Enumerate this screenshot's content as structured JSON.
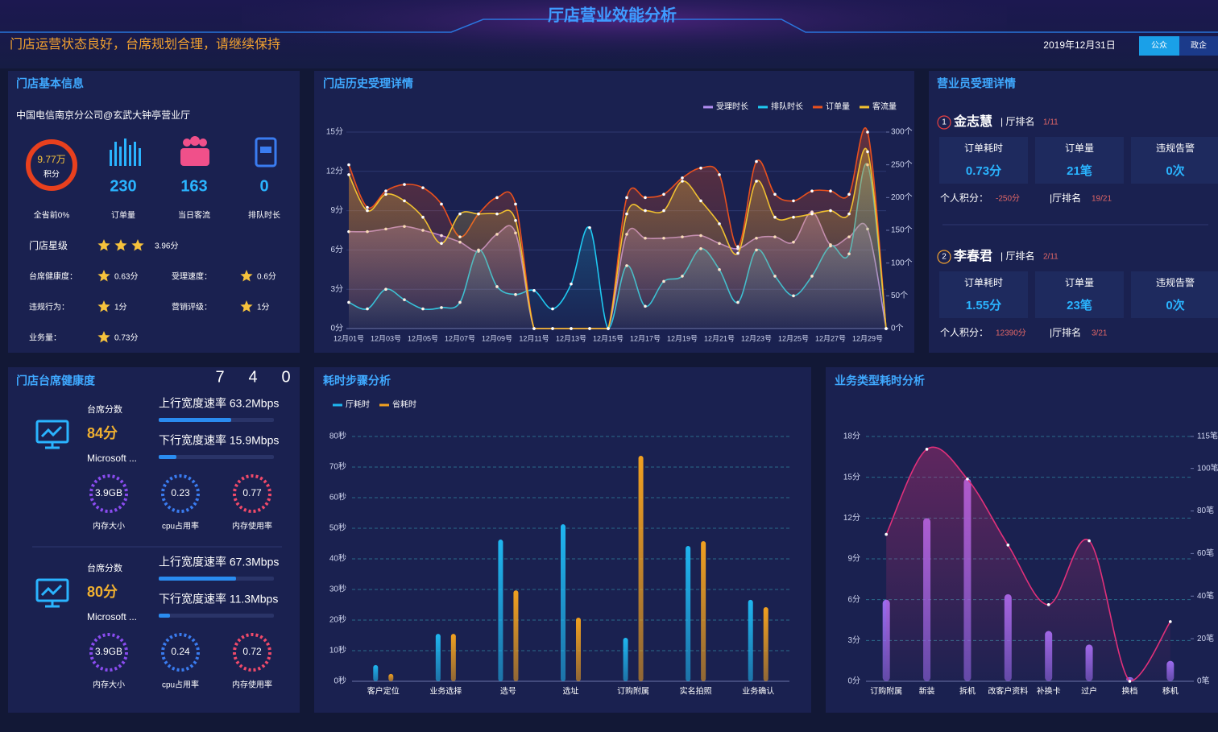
{
  "header": {
    "title": "厅店营业效能分析",
    "slogan": "门店运营状态良好，台席规划合理，请继续保持",
    "date": "2019年12月31日",
    "tabs": [
      "公众",
      "政企"
    ]
  },
  "store_info": {
    "title": "门店基本信息",
    "store_name": "中国电信南京分公司@玄武大钟亭营业厅",
    "score": "9.77万",
    "score_unit": "积分",
    "rank": "全省前0%",
    "stats": [
      {
        "value": "230",
        "label": "订单量"
      },
      {
        "value": "163",
        "label": "当日客流"
      },
      {
        "value": "0",
        "label": "排队时长"
      }
    ],
    "star_label": "门店星级",
    "star_score": "3.96分",
    "ratings": [
      {
        "label": "台席健康度：",
        "value": "0.63分"
      },
      {
        "label": "受理速度：",
        "value": "0.6分"
      },
      {
        "label": "违规行为：",
        "value": "1分"
      },
      {
        "label": "营销评级：",
        "value": "1分"
      },
      {
        "label": "业务量：",
        "value": "0.73分"
      }
    ]
  },
  "clerks": {
    "title": "营业员受理详情",
    "items": [
      {
        "rank": "1",
        "name": "金志慧",
        "rank_label": "| 厅排名",
        "rank_value": "1/11",
        "metrics": [
          {
            "label": "订单耗时",
            "value": "0.73分"
          },
          {
            "label": "订单量",
            "value": "21笔"
          },
          {
            "label": "违规告警",
            "value": "0次"
          }
        ],
        "score_label": "个人积分：",
        "score": "-250分",
        "hall_rank_label": "|厅排名",
        "hall_rank": "19/21"
      },
      {
        "rank": "2",
        "name": "李春君",
        "rank_label": "| 厅排名",
        "rank_value": "2/11",
        "metrics": [
          {
            "label": "订单耗时",
            "value": "1.55分"
          },
          {
            "label": "订单量",
            "value": "23笔"
          },
          {
            "label": "违规告警",
            "value": "0次"
          }
        ],
        "score_label": "个人积分：",
        "score": "12390分",
        "hall_rank_label": "|厅排名",
        "hall_rank": "3/21"
      }
    ]
  },
  "desks": {
    "title": "门店台席健康度",
    "counts": [
      "7",
      "4",
      "0"
    ],
    "items": [
      {
        "score_label": "台席分数",
        "score": "84分",
        "os": "Microsoft ...",
        "up": "上行宽度速率 63.2Mbps",
        "down": "下行宽度速率 15.9Mbps",
        "gauges": [
          {
            "value": "3.9GB",
            "label": "内存大小"
          },
          {
            "value": "0.23",
            "label": "cpu占用率"
          },
          {
            "value": "0.77",
            "label": "内存使用率"
          }
        ]
      },
      {
        "score_label": "台席分数",
        "score": "80分",
        "os": "Microsoft ...",
        "up": "上行宽度速率 67.3Mbps",
        "down": "下行宽度速率 11.3Mbps",
        "gauges": [
          {
            "value": "3.9GB",
            "label": "内存大小"
          },
          {
            "value": "0.24",
            "label": "cpu占用率"
          },
          {
            "value": "0.72",
            "label": "内存使用率"
          }
        ]
      }
    ]
  },
  "chart_data": [
    {
      "type": "line",
      "title": "门店历史受理详情",
      "categories": [
        "12月01号",
        null,
        "12月03号",
        null,
        "12月05号",
        null,
        "12月07号",
        null,
        "12月09号",
        null,
        "12月11号",
        null,
        "12月13号",
        null,
        "12月15号",
        null,
        "12月17号",
        null,
        "12月19号",
        null,
        "12月21号",
        null,
        "12月23号",
        null,
        "12月25号",
        null,
        "12月27号",
        null,
        "12月29号",
        null
      ],
      "series": [
        {
          "name": "受理时长",
          "color": "#b08cf0",
          "values": [
            7.4,
            7.4,
            7.6,
            7.8,
            7.5,
            7.1,
            6.6,
            5.9,
            7.2,
            7.3,
            0,
            0,
            0,
            0,
            0,
            7.2,
            6.9,
            6.9,
            7.0,
            7.1,
            6.5,
            6.1,
            6.9,
            7.0,
            6.6,
            8.9,
            6.4,
            7.0,
            7.6,
            0
          ]
        },
        {
          "name": "排队时长",
          "color": "#1ec8f0",
          "values": [
            2.0,
            1.5,
            3.0,
            2.2,
            1.5,
            1.6,
            2.0,
            6.0,
            3.2,
            2.6,
            2.9,
            1.5,
            3.4,
            7.7,
            0,
            4.8,
            1.7,
            3.6,
            4.0,
            6.1,
            4.5,
            2.0,
            6.0,
            4.0,
            2.5,
            4.0,
            6.3,
            5.7,
            12.5,
            0
          ]
        },
        {
          "name": "订单量",
          "color": "#e8501e",
          "axis": "y2",
          "values": [
            250,
            185,
            210,
            220,
            215,
            190,
            140,
            175,
            200,
            190,
            0,
            0,
            0,
            0,
            0,
            200,
            200,
            205,
            230,
            245,
            235,
            125,
            255,
            205,
            195,
            210,
            210,
            205,
            300,
            0
          ]
        },
        {
          "name": "客流量",
          "color": "#f0c030",
          "axis": "y2",
          "values": [
            235,
            180,
            205,
            195,
            170,
            130,
            175,
            175,
            175,
            165,
            0,
            0,
            0,
            0,
            0,
            175,
            180,
            180,
            225,
            195,
            160,
            115,
            225,
            170,
            170,
            175,
            180,
            175,
            270,
            0
          ]
        }
      ],
      "ylim": [
        0,
        15
      ],
      "yticks": [
        {
          "value": 0,
          "label": "0分"
        },
        {
          "value": 3,
          "label": "3分"
        },
        {
          "value": 6,
          "label": "6分"
        },
        {
          "value": 9,
          "label": "9分"
        },
        {
          "value": 12,
          "label": "12分"
        },
        {
          "value": 15,
          "label": "15分"
        }
      ],
      "y2lim": [
        0,
        300
      ],
      "y2ticks": [
        {
          "value": 0,
          "label": "0个"
        },
        {
          "value": 50,
          "label": "50个"
        },
        {
          "value": 100,
          "label": "100个"
        },
        {
          "value": 150,
          "label": "150个"
        },
        {
          "value": 200,
          "label": "200个"
        },
        {
          "value": 250,
          "label": "250个"
        },
        {
          "value": 300,
          "label": "300个"
        }
      ],
      "grid": true,
      "legend": "top-right"
    },
    {
      "type": "bar",
      "title": "耗时步骤分析",
      "categories": [
        "客户定位",
        "业务选择",
        "选号",
        "选址",
        "订购附属",
        "实名拍照",
        "业务确认"
      ],
      "series": [
        {
          "name": "厅耗时",
          "color": "#1fb6f0",
          "values": [
            5.3,
            15.5,
            46.3,
            51.3,
            14.2,
            44.2,
            26.6
          ]
        },
        {
          "name": "省耗时",
          "color": "#f0a020",
          "values": [
            2.4,
            15.5,
            29.7,
            20.8,
            73.7,
            45.8,
            24.2
          ]
        }
      ],
      "ylim": [
        0,
        80
      ],
      "yticks": [
        {
          "value": 0,
          "label": "0秒"
        },
        {
          "value": 10,
          "label": "10秒"
        },
        {
          "value": 20,
          "label": "20秒"
        },
        {
          "value": 30,
          "label": "30秒"
        },
        {
          "value": 40,
          "label": "40秒"
        },
        {
          "value": 50,
          "label": "50秒"
        },
        {
          "value": 60,
          "label": "60秒"
        },
        {
          "value": 70,
          "label": "70秒"
        },
        {
          "value": 80,
          "label": "80秒"
        }
      ],
      "grid": true,
      "legend": "top-left"
    },
    {
      "type": "combo",
      "title": "业务类型耗时分析",
      "categories": [
        "订购附属",
        "新装",
        "拆机",
        "改客户资料",
        "补换卡",
        "过户",
        "换档",
        "移机"
      ],
      "series": [
        {
          "type": "bar",
          "color": "#9b6cf0",
          "values": [
            6.0,
            12.0,
            14.9,
            6.4,
            3.7,
            2.7,
            0.3,
            1.5
          ]
        },
        {
          "type": "line",
          "color": "#e0307a",
          "axis": "y2",
          "values": [
            69,
            109,
            95,
            64,
            36,
            66,
            0,
            28
          ]
        }
      ],
      "ylim": [
        0,
        18
      ],
      "yticks": [
        {
          "value": 0,
          "label": "0分"
        },
        {
          "value": 3,
          "label": "3分"
        },
        {
          "value": 6,
          "label": "6分"
        },
        {
          "value": 9,
          "label": "9分"
        },
        {
          "value": 12,
          "label": "12分"
        },
        {
          "value": 15,
          "label": "15分"
        },
        {
          "value": 18,
          "label": "18分"
        }
      ],
      "y2lim": [
        0,
        115
      ],
      "y2ticks": [
        {
          "value": 0,
          "label": "0笔"
        },
        {
          "value": 20,
          "label": "20笔"
        },
        {
          "value": 40,
          "label": "40笔"
        },
        {
          "value": 60,
          "label": "60笔"
        },
        {
          "value": 80,
          "label": "80笔"
        },
        {
          "value": 100,
          "label": "100笔"
        },
        {
          "value": 115,
          "label": "115笔"
        }
      ],
      "grid": true
    }
  ]
}
